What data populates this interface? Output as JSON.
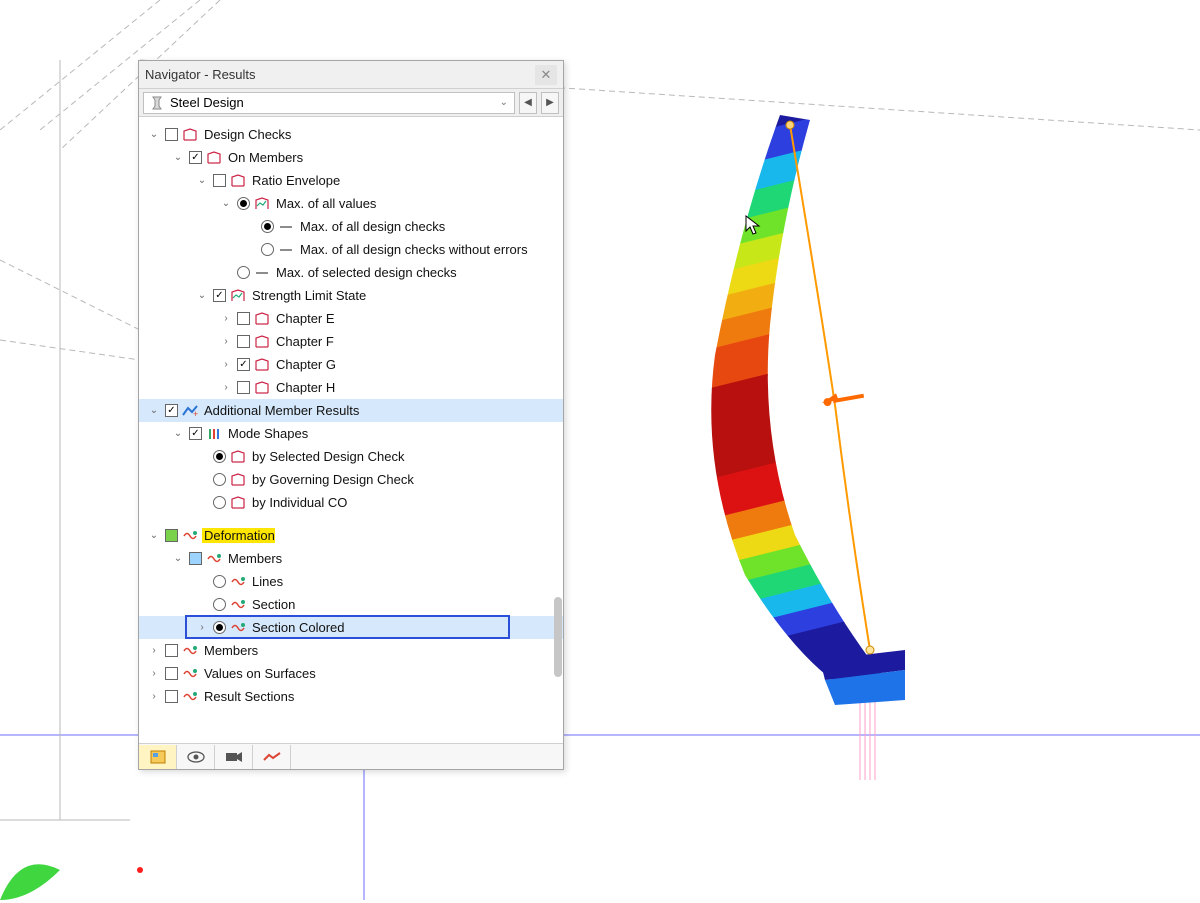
{
  "panel": {
    "title": "Navigator - Results",
    "selector_label": "Steel Design"
  },
  "tree": [
    {
      "depth": 0,
      "chev": "down",
      "ctl": "cbox",
      "checked": false,
      "icon": "frame",
      "label": "Design Checks"
    },
    {
      "depth": 1,
      "chev": "down",
      "ctl": "cbox",
      "checked": true,
      "icon": "frame",
      "label": "On Members"
    },
    {
      "depth": 2,
      "chev": "down",
      "ctl": "cbox",
      "checked": false,
      "icon": "frame",
      "label": "Ratio Envelope"
    },
    {
      "depth": 3,
      "chev": "down",
      "ctl": "radio",
      "checked": true,
      "icon": "graph",
      "label": "Max. of all values"
    },
    {
      "depth": 4,
      "chev": "none",
      "ctl": "radio",
      "checked": true,
      "icon": "dash",
      "label": "Max. of all design checks"
    },
    {
      "depth": 4,
      "chev": "none",
      "ctl": "radio",
      "checked": false,
      "icon": "dash",
      "label": "Max. of all design checks without errors"
    },
    {
      "depth": 3,
      "chev": "none",
      "ctl": "radio",
      "checked": false,
      "icon": "dash",
      "label": "Max. of selected design checks"
    },
    {
      "depth": 2,
      "chev": "down",
      "ctl": "cbox",
      "checked": true,
      "icon": "graph",
      "label": "Strength Limit State"
    },
    {
      "depth": 3,
      "chev": "right",
      "ctl": "cbox",
      "checked": false,
      "icon": "frame",
      "label": "Chapter E"
    },
    {
      "depth": 3,
      "chev": "right",
      "ctl": "cbox",
      "checked": false,
      "icon": "frame",
      "label": "Chapter F"
    },
    {
      "depth": 3,
      "chev": "right",
      "ctl": "cbox",
      "checked": true,
      "icon": "frame",
      "label": "Chapter G"
    },
    {
      "depth": 3,
      "chev": "right",
      "ctl": "cbox",
      "checked": false,
      "icon": "frame",
      "label": "Chapter H"
    },
    {
      "depth": 0,
      "chev": "down",
      "ctl": "cbox",
      "checked": true,
      "icon": "addl",
      "label": "Additional Member Results",
      "hl": "blue"
    },
    {
      "depth": 1,
      "chev": "down",
      "ctl": "cbox",
      "checked": true,
      "icon": "mode",
      "label": "Mode Shapes"
    },
    {
      "depth": 2,
      "chev": "none",
      "ctl": "radio",
      "checked": true,
      "icon": "frame",
      "label": "by Selected Design Check"
    },
    {
      "depth": 2,
      "chev": "none",
      "ctl": "radio",
      "checked": false,
      "icon": "frame",
      "label": "by Governing Design Check"
    },
    {
      "depth": 2,
      "chev": "none",
      "ctl": "radio",
      "checked": false,
      "icon": "frame",
      "label": "by Individual CO"
    },
    {
      "depth": -1,
      "chev": "none",
      "ctl": "none",
      "checked": false,
      "icon": "none",
      "label": "",
      "spacer": true
    },
    {
      "depth": 0,
      "chev": "down",
      "ctl": "cbox",
      "checked": false,
      "icon": "deform",
      "label": "Deformation",
      "hl": "yellow",
      "cbox_fill": "#79d24a"
    },
    {
      "depth": 1,
      "chev": "down",
      "ctl": "cbox",
      "checked": false,
      "icon": "deform",
      "label": "Members",
      "cbox_fill": "#9dd4ff"
    },
    {
      "depth": 2,
      "chev": "none",
      "ctl": "radio",
      "checked": false,
      "icon": "deform",
      "label": "Lines"
    },
    {
      "depth": 2,
      "chev": "none",
      "ctl": "radio",
      "checked": false,
      "icon": "deform",
      "label": "Section"
    },
    {
      "depth": 2,
      "chev": "right",
      "ctl": "radio",
      "checked": true,
      "icon": "deform",
      "label": "Section Colored",
      "hl": "blue",
      "selbox": true
    },
    {
      "depth": 0,
      "chev": "right",
      "ctl": "cbox",
      "checked": false,
      "icon": "deform",
      "label": "Members"
    },
    {
      "depth": 0,
      "chev": "right",
      "ctl": "cbox",
      "checked": false,
      "icon": "deform",
      "label": "Values on Surfaces"
    },
    {
      "depth": 0,
      "chev": "right",
      "ctl": "cbox",
      "checked": false,
      "icon": "deform",
      "label": "Result Sections"
    }
  ],
  "beam": {
    "colors": [
      "#1c1a9e",
      "#2e3fe0",
      "#1f73e8",
      "#18b8ed",
      "#1fd774",
      "#6fe22a",
      "#c8e718",
      "#eeda14",
      "#f2ae10",
      "#ef7a0e",
      "#e74810",
      "#dc1212",
      "#b80f0f"
    ],
    "centerline": "#ff9a00"
  },
  "arrow_color": "#ff6a00",
  "wire_stroke": "#b8b8b8",
  "ground_stroke": "#6d6dff"
}
